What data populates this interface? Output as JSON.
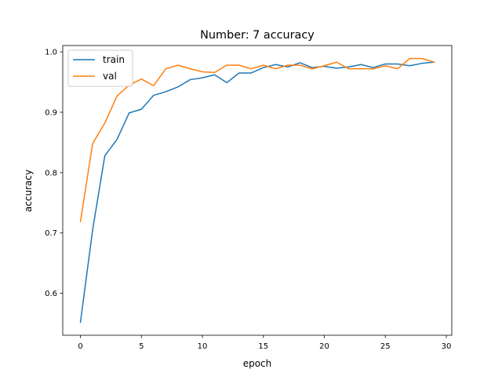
{
  "chart_data": {
    "type": "line",
    "title": "Number: 7 accuracy",
    "xlabel": "epoch",
    "ylabel": "accuracy",
    "xlim": [
      -1.45,
      30.45
    ],
    "ylim": [
      0.5305,
      1.0105
    ],
    "xticks": [
      0,
      5,
      10,
      15,
      20,
      25,
      30
    ],
    "yticks": [
      0.6,
      0.7,
      0.8,
      0.9,
      1.0
    ],
    "ytick_labels": [
      "0.6",
      "0.7",
      "0.8",
      "0.9",
      "1.0"
    ],
    "grid": false,
    "legend_position": "top-left",
    "x": [
      0,
      1,
      2,
      3,
      4,
      5,
      6,
      7,
      8,
      9,
      10,
      11,
      12,
      13,
      14,
      15,
      16,
      17,
      18,
      19,
      20,
      21,
      22,
      23,
      24,
      25,
      26,
      27,
      28,
      29
    ],
    "series": [
      {
        "name": "train",
        "color": "#1f77b4",
        "values": [
          0.552,
          0.705,
          0.828,
          0.855,
          0.899,
          0.905,
          0.928,
          0.934,
          0.942,
          0.954,
          0.957,
          0.962,
          0.949,
          0.965,
          0.965,
          0.974,
          0.979,
          0.975,
          0.982,
          0.974,
          0.976,
          0.973,
          0.975,
          0.979,
          0.974,
          0.98,
          0.98,
          0.977,
          0.981,
          0.983
        ]
      },
      {
        "name": "val",
        "color": "#ff7f0e",
        "values": [
          0.719,
          0.848,
          0.882,
          0.927,
          0.945,
          0.955,
          0.944,
          0.972,
          0.978,
          0.972,
          0.967,
          0.966,
          0.978,
          0.978,
          0.972,
          0.978,
          0.972,
          0.978,
          0.978,
          0.972,
          0.977,
          0.983,
          0.972,
          0.972,
          0.972,
          0.977,
          0.972,
          0.989,
          0.989,
          0.983
        ]
      }
    ]
  }
}
